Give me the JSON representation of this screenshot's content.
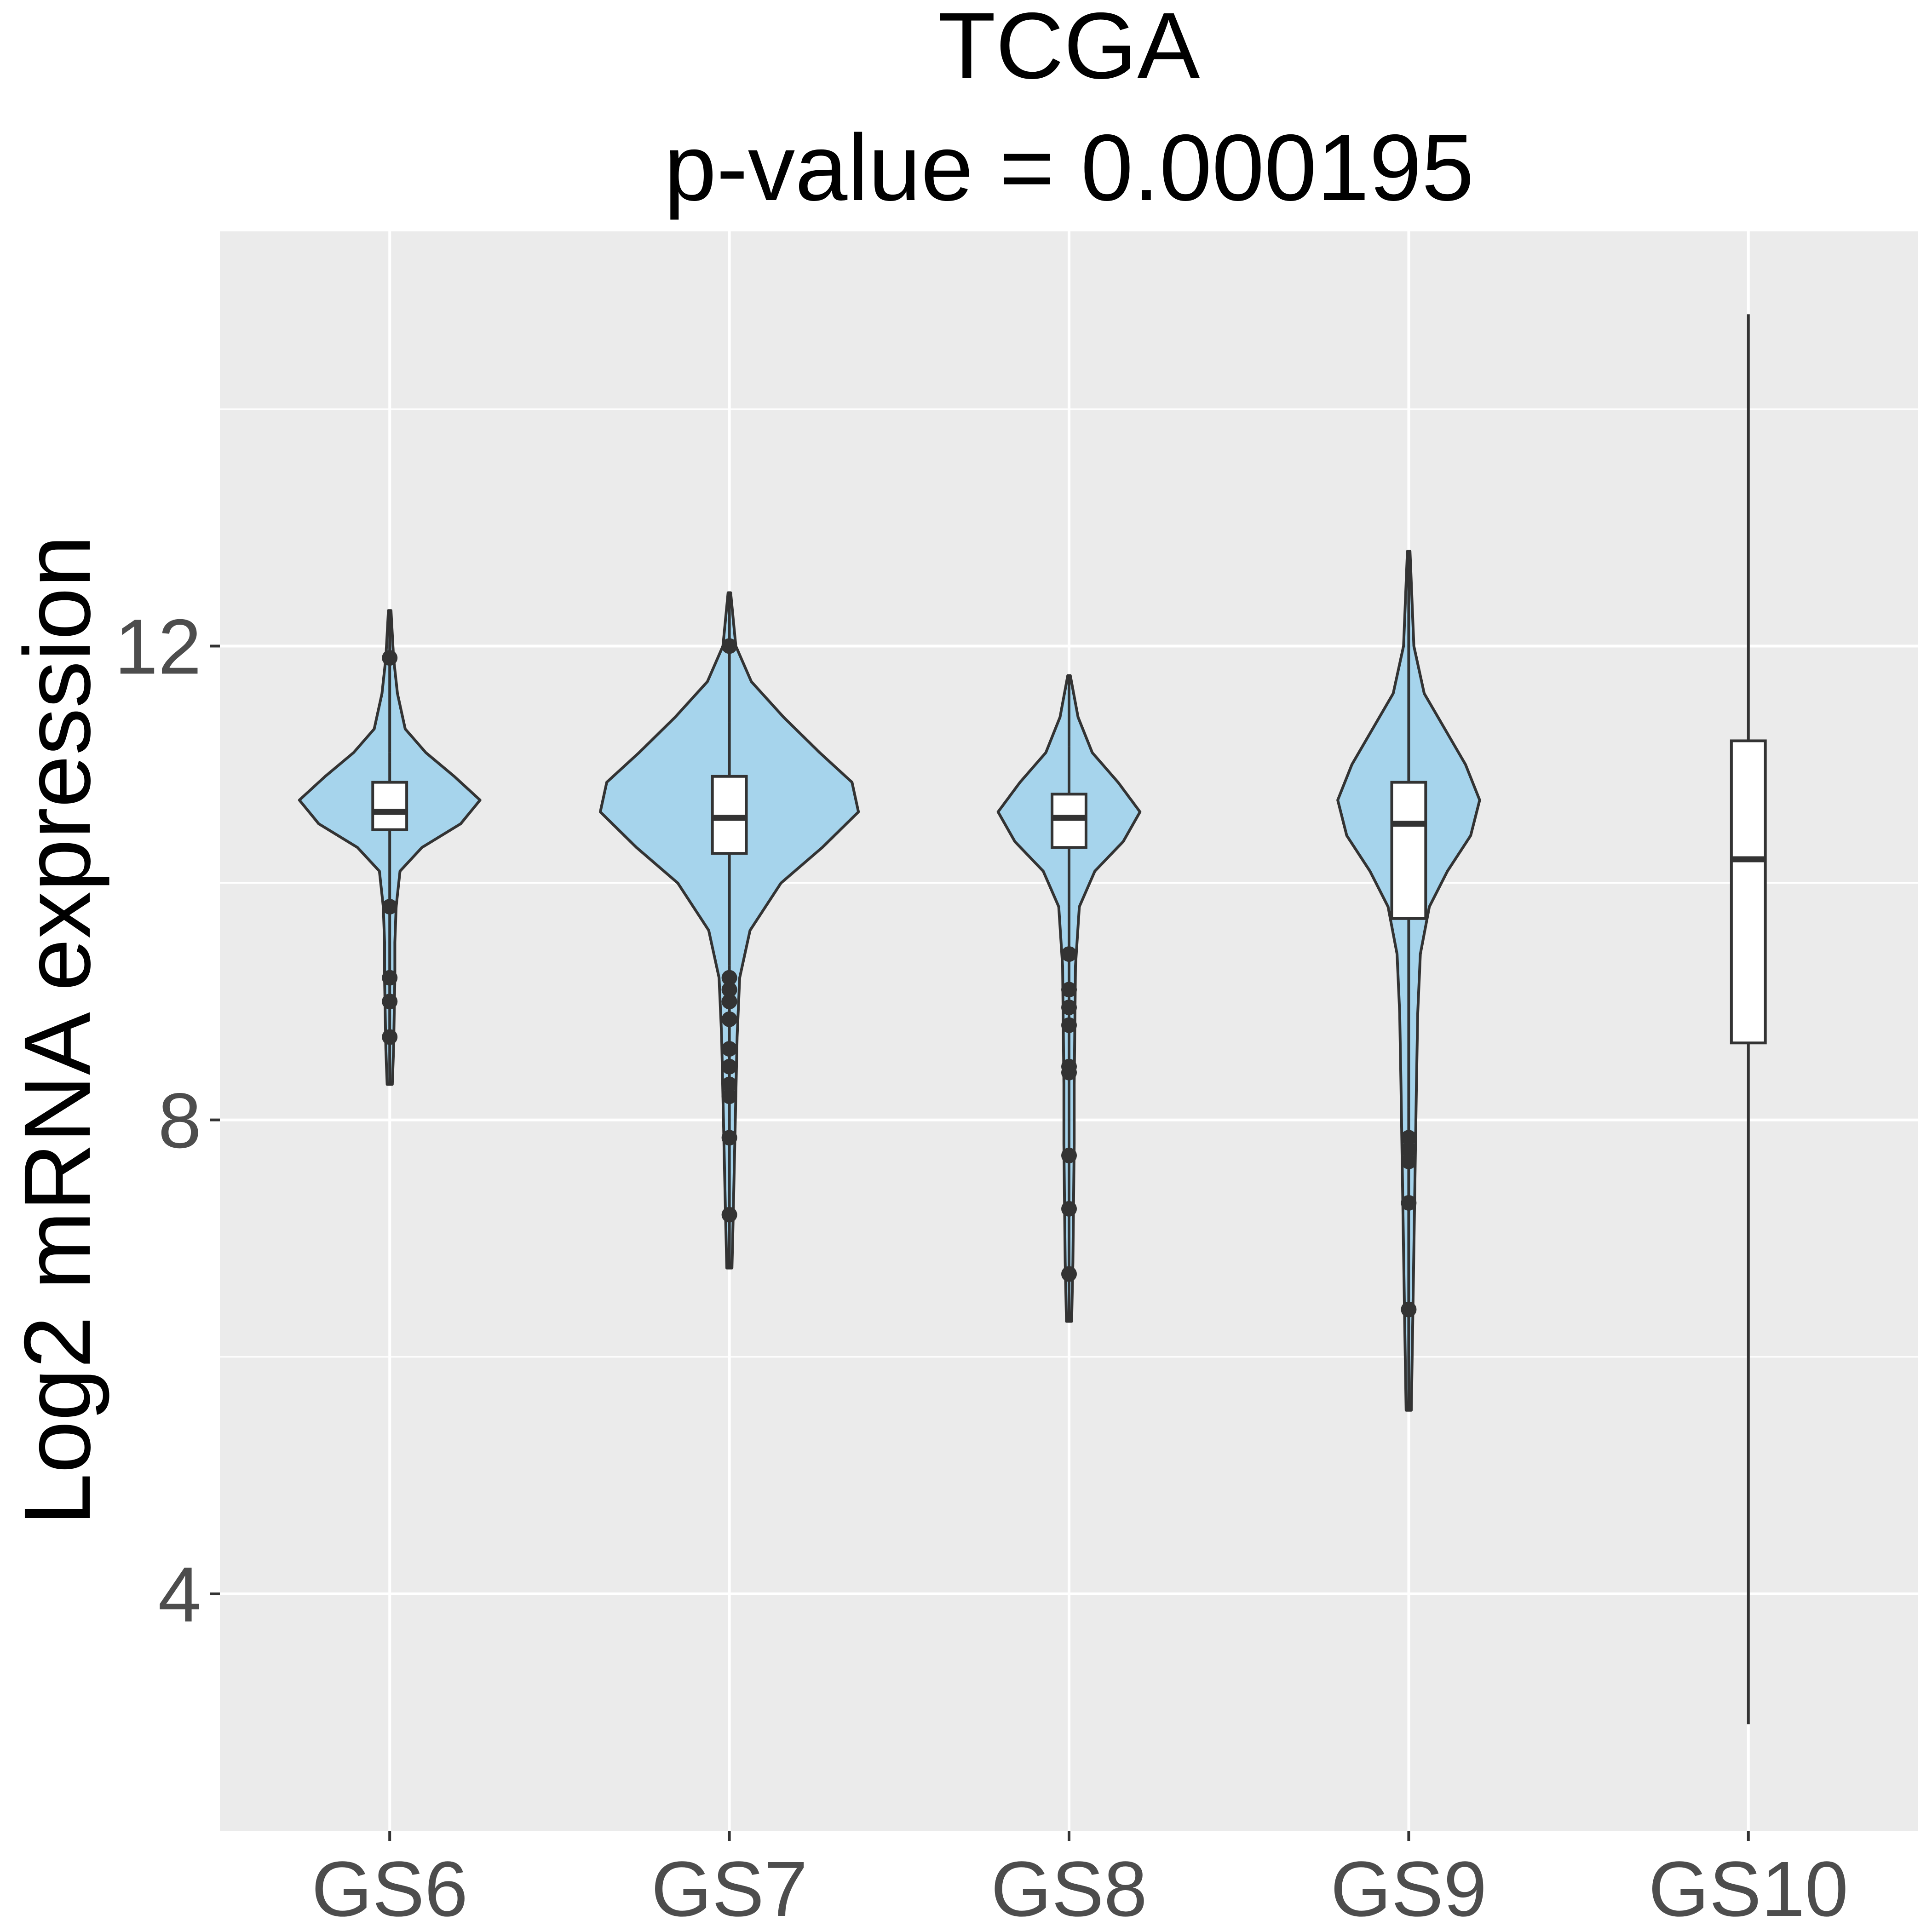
{
  "chart_data": {
    "type": "violin",
    "title": "TCGA",
    "subtitle": "p-value = 0.000195",
    "xlabel": "",
    "ylabel": "Log2 mRNA expression",
    "ylim": [
      2.0,
      15.5
    ],
    "y_ticks": [
      4,
      8,
      12
    ],
    "grid": true,
    "colors": {
      "panel_bg": "#ebebeb",
      "grid": "#ffffff",
      "violin_fill": "#a6d4ec",
      "outline": "#333333",
      "box_fill": "#ffffff"
    },
    "categories": [
      "GS6",
      "GS7",
      "GS8",
      "GS9",
      "GS10"
    ],
    "groups": [
      {
        "name": "GS6",
        "min": 8.3,
        "max": 12.3,
        "q1": 10.45,
        "median": 10.6,
        "q3": 10.85,
        "whisker_low": 10.15,
        "whisker_high": 11.1,
        "outliers": [
          11.9,
          9.8,
          9.2,
          9.0,
          8.7
        ],
        "density": [
          [
            8.3,
            0.02
          ],
          [
            8.6,
            0.03
          ],
          [
            8.9,
            0.035
          ],
          [
            9.2,
            0.04
          ],
          [
            9.5,
            0.04
          ],
          [
            9.8,
            0.05
          ],
          [
            10.1,
            0.08
          ],
          [
            10.3,
            0.25
          ],
          [
            10.5,
            0.55
          ],
          [
            10.7,
            0.7
          ],
          [
            10.9,
            0.5
          ],
          [
            11.1,
            0.28
          ],
          [
            11.3,
            0.12
          ],
          [
            11.6,
            0.06
          ],
          [
            11.9,
            0.03
          ],
          [
            12.3,
            0.01
          ]
        ]
      },
      {
        "name": "GS7",
        "min": 6.75,
        "max": 12.45,
        "q1": 10.25,
        "median": 10.55,
        "q3": 10.9,
        "whisker_low": 9.3,
        "whisker_high": 11.35,
        "outliers": [
          12.0,
          9.2,
          9.1,
          9.0,
          8.85,
          8.6,
          8.45,
          8.3,
          8.2,
          7.85,
          7.2
        ],
        "density": [
          [
            6.75,
            0.02
          ],
          [
            7.2,
            0.03
          ],
          [
            7.7,
            0.04
          ],
          [
            8.2,
            0.05
          ],
          [
            8.7,
            0.06
          ],
          [
            9.2,
            0.08
          ],
          [
            9.6,
            0.16
          ],
          [
            10.0,
            0.4
          ],
          [
            10.3,
            0.72
          ],
          [
            10.6,
            1.0
          ],
          [
            10.85,
            0.95
          ],
          [
            11.1,
            0.7
          ],
          [
            11.4,
            0.42
          ],
          [
            11.7,
            0.17
          ],
          [
            12.0,
            0.05
          ],
          [
            12.45,
            0.01
          ]
        ]
      },
      {
        "name": "GS8",
        "min": 6.3,
        "max": 11.75,
        "q1": 10.3,
        "median": 10.55,
        "q3": 10.75,
        "whisker_low": 9.8,
        "whisker_high": 11.15,
        "outliers": [
          9.4,
          9.1,
          8.95,
          8.8,
          8.45,
          8.4,
          7.7,
          7.25,
          6.7
        ],
        "density": [
          [
            6.3,
            0.02
          ],
          [
            6.8,
            0.03
          ],
          [
            7.3,
            0.035
          ],
          [
            7.8,
            0.04
          ],
          [
            8.3,
            0.04
          ],
          [
            8.8,
            0.045
          ],
          [
            9.3,
            0.05
          ],
          [
            9.8,
            0.08
          ],
          [
            10.1,
            0.2
          ],
          [
            10.35,
            0.42
          ],
          [
            10.6,
            0.55
          ],
          [
            10.85,
            0.38
          ],
          [
            11.1,
            0.18
          ],
          [
            11.4,
            0.07
          ],
          [
            11.75,
            0.01
          ]
        ]
      },
      {
        "name": "GS9",
        "min": 5.55,
        "max": 12.8,
        "q1": 9.7,
        "median": 10.5,
        "q3": 10.85,
        "whisker_low": 8.1,
        "whisker_high": 11.4,
        "outliers": [
          7.85,
          7.75,
          7.65,
          7.3,
          6.4
        ],
        "density": [
          [
            5.55,
            0.02
          ],
          [
            6.2,
            0.03
          ],
          [
            6.9,
            0.04
          ],
          [
            7.6,
            0.05
          ],
          [
            8.3,
            0.06
          ],
          [
            8.9,
            0.07
          ],
          [
            9.4,
            0.09
          ],
          [
            9.8,
            0.16
          ],
          [
            10.1,
            0.3
          ],
          [
            10.4,
            0.48
          ],
          [
            10.7,
            0.55
          ],
          [
            11.0,
            0.44
          ],
          [
            11.3,
            0.28
          ],
          [
            11.6,
            0.12
          ],
          [
            12.0,
            0.04
          ],
          [
            12.8,
            0.01
          ]
        ]
      },
      {
        "name": "GS10",
        "min": 2.9,
        "max": 14.8,
        "q1": 8.65,
        "median": 10.2,
        "q3": 11.2,
        "whisker_low": 2.9,
        "whisker_high": 14.8,
        "outliers": [],
        "density": []
      }
    ]
  }
}
